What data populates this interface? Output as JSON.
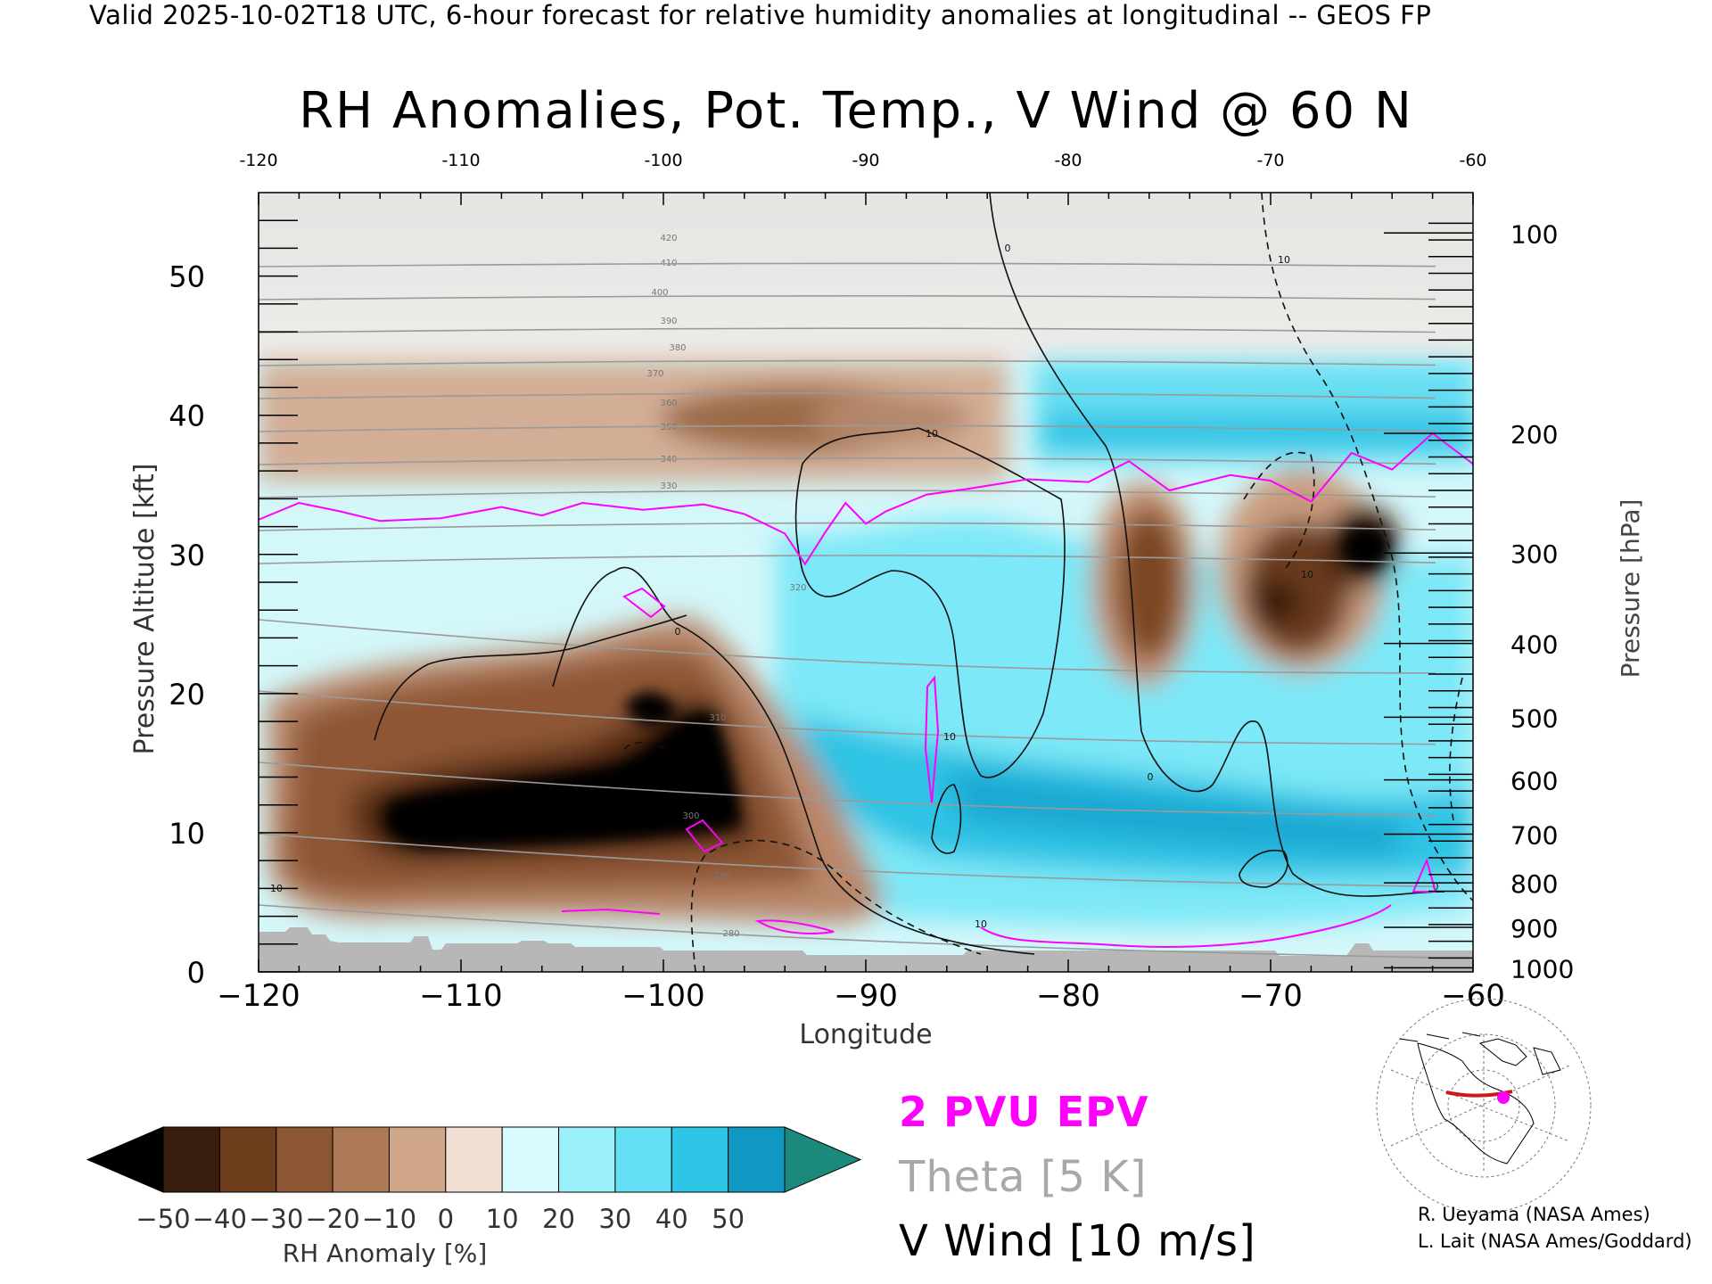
{
  "header": "Valid 2025-10-02T18 UTC, 6-hour forecast for relative humidity anomalies at longitudinal -- GEOS FP",
  "chart_data": {
    "type": "heatmap",
    "title": "RH Anomalies, Pot. Temp., V Wind @ 60 N",
    "xlabel": "Longitude",
    "ylabel": "Pressure Altitude [kft]",
    "y2label": "Pressure [hPa]",
    "xlim": [
      -120,
      -60
    ],
    "ylim": [
      0,
      56
    ],
    "x_ticks": [
      -120,
      -110,
      -100,
      -90,
      -80,
      -70,
      -60
    ],
    "x_tick_labels": [
      "−120",
      "−110",
      "−100",
      "−90",
      "−80",
      "−70",
      "−60"
    ],
    "x_top_ticks": [
      -120,
      -110,
      -100,
      -90,
      -80,
      -70,
      -60
    ],
    "x_top_tick_labels": [
      "-120",
      "-110",
      "-100",
      "-90",
      "-80",
      "-70",
      "-60"
    ],
    "y_ticks": [
      0,
      10,
      20,
      30,
      40,
      50
    ],
    "y_tick_labels": [
      "0",
      "10",
      "20",
      "30",
      "40",
      "50"
    ],
    "pressure_ticks": [
      {
        "hpa": 100,
        "kft": 53.1
      },
      {
        "hpa": 200,
        "kft": 38.7
      },
      {
        "hpa": 300,
        "kft": 30.1
      },
      {
        "hpa": 400,
        "kft": 23.6
      },
      {
        "hpa": 500,
        "kft": 18.3
      },
      {
        "hpa": 600,
        "kft": 13.8
      },
      {
        "hpa": 700,
        "kft": 9.9
      },
      {
        "hpa": 800,
        "kft": 6.4
      },
      {
        "hpa": 900,
        "kft": 3.2
      },
      {
        "hpa": 1000,
        "kft": 0.3
      }
    ],
    "colorbar": {
      "label": "RH Anomaly [%]",
      "tick_labels": [
        "−50",
        "−40",
        "−30",
        "−20",
        "−10",
        "0",
        "10",
        "20",
        "30",
        "40",
        "50"
      ],
      "levels": [
        -50,
        -40,
        -30,
        -20,
        -10,
        0,
        10,
        20,
        30,
        40,
        50
      ],
      "colors": [
        "#3a1e0d",
        "#6e3d1c",
        "#8c5632",
        "#ad7957",
        "#d0a78b",
        "#f0dfd3",
        "#d9fbfd",
        "#9bf0fb",
        "#63e0f4",
        "#2cc5e6",
        "#0e98c2"
      ],
      "under_color": "#000000",
      "over_color": "#1b8a7c"
    },
    "theta_contours_K": [
      280,
      290,
      300,
      310,
      320,
      330,
      340,
      350,
      360,
      370,
      380,
      390,
      400,
      410,
      420
    ],
    "v_wind_contours_ms": [
      -10,
      0,
      10
    ],
    "dry_anomalies": [
      {
        "label": "lower-left dry",
        "lon": [
          -119,
          -97
        ],
        "kft": [
          4,
          20
        ],
        "min_rh": -50
      },
      {
        "label": "upper dry layer",
        "lon": [
          -120,
          -83
        ],
        "kft": [
          36,
          45
        ],
        "min_rh": -30
      },
      {
        "label": "dry column",
        "lon": [
          -79,
          -74
        ],
        "kft": [
          20,
          35
        ],
        "min_rh": -50
      },
      {
        "label": "dry column",
        "lon": [
          -71,
          -63
        ],
        "kft": [
          17,
          35
        ],
        "min_rh": -50
      }
    ],
    "moist_anomalies": [
      {
        "label": "mid-level moist",
        "lon": [
          -96,
          -62
        ],
        "kft": [
          3,
          27
        ],
        "max_rh": 40
      },
      {
        "label": "upper moist",
        "lon": [
          -83,
          -60
        ],
        "kft": [
          36,
          43
        ],
        "max_rh": 40
      }
    ],
    "epv_2pvu_kft_by_lon": [
      [
        -120,
        32.5
      ],
      [
        -118,
        33.7
      ],
      [
        -116,
        33.1
      ],
      [
        -114,
        32.4
      ],
      [
        -111,
        32.6
      ],
      [
        -108,
        33.4
      ],
      [
        -106,
        32.8
      ],
      [
        -104,
        33.7
      ],
      [
        -101,
        33.2
      ],
      [
        -98,
        33.6
      ],
      [
        -96,
        32.9
      ],
      [
        -94,
        31.5
      ],
      [
        -93,
        29.3
      ],
      [
        -92,
        31.6
      ],
      [
        -91,
        33.7
      ],
      [
        -90,
        32.2
      ],
      [
        -89,
        33.1
      ],
      [
        -87,
        34.3
      ],
      [
        -85,
        34.7
      ],
      [
        -82,
        35.4
      ],
      [
        -79,
        35.2
      ],
      [
        -77,
        36.7
      ],
      [
        -75,
        34.6
      ],
      [
        -72,
        35.7
      ],
      [
        -70,
        35.3
      ],
      [
        -68,
        33.8
      ],
      [
        -66,
        37.3
      ],
      [
        -64,
        36.1
      ],
      [
        -62,
        38.7
      ],
      [
        -60,
        36.5
      ]
    ]
  },
  "legend": {
    "epv": "2 PVU EPV",
    "theta": "Theta [5 K]",
    "vwind": "V Wind [10 m/s]",
    "epv_color": "#ff00ff",
    "theta_color": "#a8a8a8"
  },
  "credits": [
    "R. Ueyama (NASA Ames)",
    "L. Lait (NASA Ames/Goddard)"
  ],
  "inset_map": {
    "latitude_line": "60 N",
    "line_color": "#cc1a1a",
    "marker_color": "#ff00ff"
  }
}
